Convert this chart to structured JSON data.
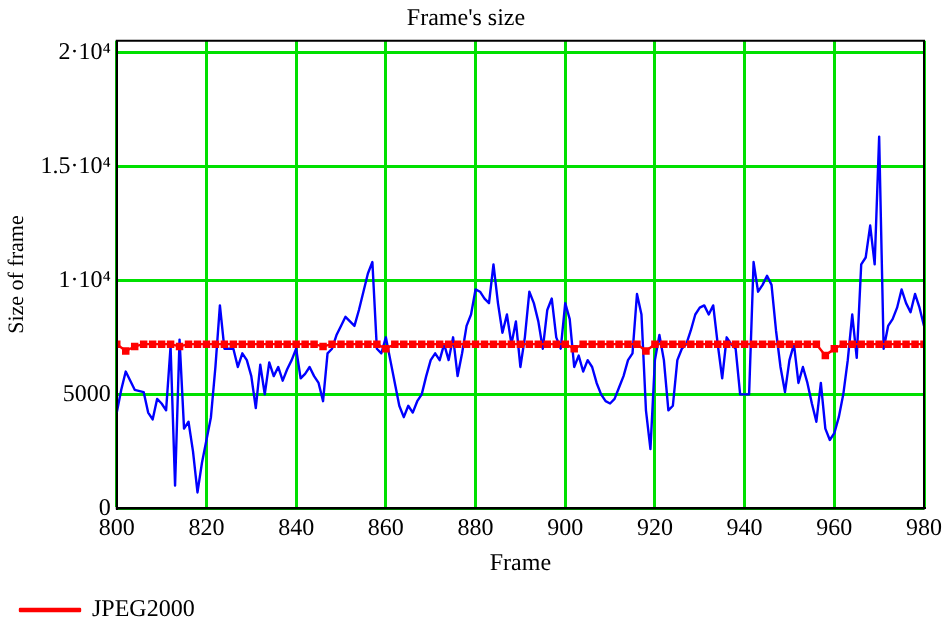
{
  "chart_data": {
    "type": "line",
    "title": "Frame's size",
    "xlabel": "Frame",
    "ylabel": "Size of frame",
    "xlim": [
      800,
      980
    ],
    "xticks": [
      800,
      820,
      840,
      860,
      880,
      900,
      920,
      940,
      960,
      980
    ],
    "ylim": [
      0,
      20500
    ],
    "yticks": [
      0,
      5000,
      {
        "value": 10000,
        "label": "1·10⁴"
      },
      {
        "value": 15000,
        "label": "1.5·10⁴"
      },
      {
        "value": 20000,
        "label": "2·10⁴"
      }
    ],
    "grid": true,
    "legend": "bottom left",
    "series": [
      {
        "name": "JPEG2000",
        "color": "#ff0000",
        "marker": "square",
        "x": [
          800,
          802,
          804,
          806,
          808,
          810,
          812,
          814,
          816,
          818,
          820,
          822,
          824,
          826,
          828,
          830,
          832,
          834,
          836,
          838,
          840,
          842,
          844,
          846,
          848,
          850,
          852,
          854,
          856,
          858,
          860,
          862,
          864,
          866,
          868,
          870,
          872,
          874,
          876,
          878,
          880,
          882,
          884,
          886,
          888,
          890,
          892,
          894,
          896,
          898,
          900,
          902,
          904,
          906,
          908,
          910,
          912,
          914,
          916,
          918,
          920,
          922,
          924,
          926,
          928,
          930,
          932,
          934,
          936,
          938,
          940,
          942,
          944,
          946,
          948,
          950,
          952,
          954,
          956,
          958,
          960,
          962,
          964,
          966,
          968,
          970,
          972,
          974,
          976,
          978,
          980
        ],
        "values": [
          7200,
          6900,
          7100,
          7200,
          7200,
          7200,
          7200,
          7100,
          7200,
          7200,
          7200,
          7200,
          7200,
          7200,
          7200,
          7200,
          7200,
          7200,
          7200,
          7200,
          7200,
          7200,
          7200,
          7100,
          7200,
          7200,
          7200,
          7200,
          7200,
          7200,
          7000,
          7200,
          7200,
          7200,
          7200,
          7200,
          7200,
          7200,
          7200,
          7200,
          7200,
          7200,
          7200,
          7200,
          7200,
          7200,
          7200,
          7200,
          7200,
          7200,
          7200,
          7000,
          7200,
          7200,
          7200,
          7200,
          7200,
          7200,
          7200,
          6900,
          7200,
          7200,
          7200,
          7200,
          7200,
          7200,
          7200,
          7200,
          7200,
          7200,
          7200,
          7200,
          7200,
          7200,
          7200,
          7200,
          7200,
          7200,
          7200,
          6700,
          7000,
          7200,
          7200,
          7200,
          7200,
          7200,
          7200,
          7200,
          7200,
          7200,
          7200
        ]
      },
      {
        "color": "#0000ff",
        "marker": "none",
        "x": [
          800,
          801,
          802,
          804,
          806,
          807,
          808,
          809,
          810,
          811,
          812,
          813,
          814,
          815,
          816,
          817,
          818,
          819,
          820,
          821,
          822,
          823,
          824,
          825,
          826,
          827,
          828,
          829,
          830,
          831,
          832,
          833,
          834,
          835,
          836,
          837,
          838,
          839,
          840,
          841,
          842,
          843,
          844,
          845,
          846,
          847,
          848,
          849,
          850,
          851,
          852,
          853,
          854,
          855,
          856,
          857,
          858,
          859,
          860,
          861,
          862,
          863,
          864,
          865,
          866,
          867,
          868,
          869,
          870,
          871,
          872,
          873,
          874,
          875,
          876,
          877,
          878,
          879,
          880,
          881,
          882,
          883,
          884,
          885,
          886,
          887,
          888,
          889,
          890,
          891,
          892,
          893,
          894,
          895,
          896,
          897,
          898,
          899,
          900,
          901,
          902,
          903,
          904,
          905,
          906,
          907,
          908,
          909,
          910,
          911,
          912,
          913,
          914,
          915,
          916,
          917,
          918,
          919,
          920,
          921,
          922,
          923,
          924,
          925,
          926,
          927,
          928,
          929,
          930,
          931,
          932,
          933,
          934,
          935,
          936,
          937,
          938,
          939,
          940,
          941,
          942,
          943,
          944,
          945,
          946,
          947,
          948,
          949,
          950,
          951,
          952,
          953,
          954,
          955,
          956,
          957,
          958,
          959,
          960,
          961,
          962,
          963,
          964,
          965,
          966,
          967,
          968,
          969,
          970,
          971,
          972,
          973,
          974,
          975,
          976,
          977,
          978,
          979,
          980
        ],
        "values": [
          4200,
          5200,
          6000,
          5200,
          5100,
          4200,
          3900,
          4800,
          4600,
          4300,
          7100,
          1000,
          7400,
          3500,
          3800,
          2500,
          700,
          2000,
          3000,
          4000,
          6200,
          8900,
          7000,
          7000,
          7000,
          6200,
          6800,
          6500,
          5800,
          4400,
          6300,
          5000,
          6400,
          5800,
          6200,
          5600,
          6100,
          6500,
          7000,
          5700,
          5900,
          6200,
          5800,
          5500,
          4700,
          6800,
          7000,
          7600,
          8000,
          8400,
          8200,
          8000,
          8700,
          9500,
          10300,
          10800,
          7000,
          6800,
          7500,
          6500,
          5500,
          4500,
          4000,
          4500,
          4200,
          4700,
          5000,
          5800,
          6500,
          6800,
          6500,
          7200,
          6500,
          7500,
          5800,
          6800,
          8000,
          8500,
          9600,
          9500,
          9200,
          9000,
          10700,
          9000,
          7700,
          8500,
          7200,
          8200,
          6200,
          7500,
          9500,
          9000,
          8200,
          7000,
          8700,
          9200,
          7500,
          7000,
          9000,
          8300,
          6200,
          6700,
          6000,
          6500,
          6200,
          5500,
          5000,
          4700,
          4600,
          4800,
          5300,
          5800,
          6500,
          6800,
          9400,
          8500,
          4300,
          2600,
          6500,
          7600,
          6500,
          4300,
          4500,
          6500,
          7000,
          7200,
          7800,
          8500,
          8800,
          8900,
          8500,
          8900,
          7200,
          5700,
          7500,
          7200,
          7000,
          5000,
          5000,
          5000,
          10800,
          9500,
          9800,
          10200,
          9800,
          7800,
          6200,
          5100,
          6500,
          7200,
          5500,
          6200,
          5500,
          4600,
          3800,
          5500,
          3500,
          3000,
          3300,
          4000,
          5000,
          6500,
          8500,
          6600,
          10700,
          11000,
          12400,
          10700,
          16300,
          7000,
          8000,
          8300,
          8800,
          9600,
          9000,
          8600,
          9400,
          8800,
          8000
        ]
      }
    ]
  }
}
